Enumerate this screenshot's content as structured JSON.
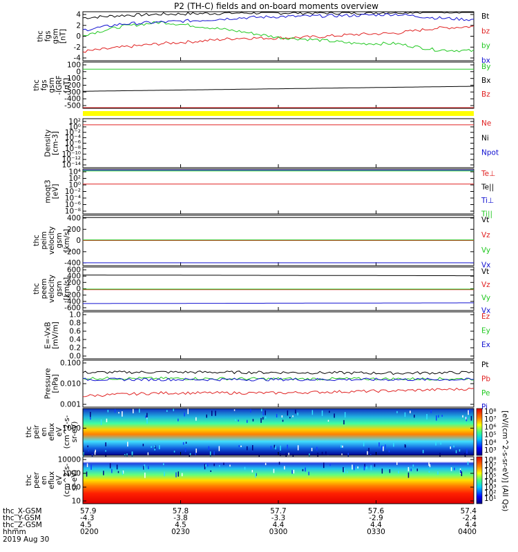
{
  "title": "P2 (TH-C) fields and on-board moments overview",
  "colors": {
    "black": "#000000",
    "red": "#e02020",
    "green": "#20c820",
    "blue": "#1010d0",
    "yellow": "#ffff00"
  },
  "chart_data": [
    {
      "type": "line",
      "ylabel": [
        "thc",
        "fgs",
        "gsm",
        "[nT]"
      ],
      "ylim": [
        -4,
        4
      ],
      "yticks": [
        "4",
        "2",
        "0",
        "-2",
        "-4"
      ],
      "series": [
        {
          "name": "Bt",
          "color": "#000000",
          "x": [
            0,
            0.1,
            0.2,
            0.3,
            0.4,
            0.5,
            0.6,
            0.7,
            0.8,
            0.9,
            1
          ],
          "y": [
            3.0,
            3.4,
            3.6,
            3.7,
            3.8,
            3.8,
            3.8,
            3.8,
            3.9,
            4.0,
            4.0
          ]
        },
        {
          "name": "bz",
          "color": "#e02020",
          "x": [
            0,
            0.1,
            0.2,
            0.3,
            0.4,
            0.5,
            0.6,
            0.7,
            0.8,
            0.9,
            1
          ],
          "y": [
            -2.5,
            -1.8,
            -1.2,
            -0.8,
            -0.3,
            -0.3,
            -0.1,
            0.3,
            0.5,
            1.3,
            1.6
          ]
        },
        {
          "name": "by",
          "color": "#20c820",
          "x": [
            0,
            0.1,
            0.2,
            0.3,
            0.4,
            0.5,
            0.6,
            0.7,
            0.8,
            0.9,
            1
          ],
          "y": [
            0.2,
            1.6,
            2.3,
            1.6,
            0.8,
            -0.2,
            -0.6,
            -1.2,
            -1.2,
            -2.2,
            -2.4
          ]
        },
        {
          "name": "bx",
          "color": "#1010d0",
          "x": [
            0,
            0.1,
            0.2,
            0.3,
            0.4,
            0.5,
            0.6,
            0.7,
            0.8,
            0.9,
            1
          ],
          "y": [
            1.0,
            2.0,
            2.3,
            2.6,
            3.0,
            3.2,
            3.3,
            3.4,
            3.6,
            3.0,
            2.7
          ]
        }
      ]
    },
    {
      "type": "line",
      "ylabel": [
        "thc",
        "fgs",
        "gsm",
        "-IGRF",
        "[nT]"
      ],
      "ylim": [
        -550,
        100
      ],
      "yticks": [
        "100",
        "0",
        "-100",
        "-200",
        "-300",
        "-400",
        "-500"
      ],
      "series": [
        {
          "name": "By",
          "color": "#20c820",
          "x": [
            0,
            1
          ],
          "y": [
            0,
            0
          ]
        },
        {
          "name": "Bx",
          "color": "#000000",
          "x": [
            0,
            1
          ],
          "y": [
            -310,
            -240
          ]
        },
        {
          "name": "Bz",
          "color": "#e02020",
          "x": [
            0,
            1
          ],
          "y": [
            -550,
            -550
          ]
        }
      ]
    },
    {
      "type": "line",
      "ylabel": [
        "Density",
        "[cm-3]"
      ],
      "yscale": "log",
      "yticks": [
        "10²",
        "10⁰",
        "10⁻²",
        "10⁻⁴",
        "10⁻⁶",
        "10⁻⁸",
        "10⁻¹⁰",
        "10⁻¹²",
        "10⁻¹⁴"
      ],
      "series": [
        {
          "name": "Ne",
          "color": "#e02020",
          "x": [
            0,
            1
          ],
          "y": [
            1.0,
            1.0
          ]
        },
        {
          "name": "Ni",
          "color": "#000000"
        },
        {
          "name": "Npot",
          "color": "#1010d0"
        }
      ]
    },
    {
      "type": "line",
      "ylabel": [
        "moqt3",
        "[eV]"
      ],
      "yscale": "log",
      "yticks": [
        "10⁴",
        "10²",
        "10⁰",
        "10⁻²",
        "10⁻⁴",
        "10⁻⁶",
        "10⁻⁸"
      ],
      "series": [
        {
          "name": "Te⊥",
          "color": "#e02020",
          "x": [
            0,
            1
          ],
          "y": [
            1,
            1
          ]
        },
        {
          "name": "Te||",
          "color": "#000000"
        },
        {
          "name": "Ti⊥",
          "color": "#1010d0",
          "x": [
            0,
            1
          ],
          "y": [
            5000,
            5000
          ]
        },
        {
          "name": "Ti||",
          "color": "#20c820",
          "x": [
            0,
            1
          ],
          "y": [
            3000,
            3000
          ]
        }
      ]
    },
    {
      "type": "line",
      "ylabel": [
        "thc",
        "peim",
        "velocity",
        "gsm",
        "[km/s]"
      ],
      "ylim": [
        -450,
        450
      ],
      "yticks": [
        "400",
        "200",
        "0",
        "-200",
        "-400"
      ],
      "series": [
        {
          "name": "Vt",
          "color": "#000000",
          "x": [
            0,
            1
          ],
          "y": [
            410,
            410
          ]
        },
        {
          "name": "Vz",
          "color": "#e02020",
          "x": [
            0,
            1
          ],
          "y": [
            0,
            0
          ]
        },
        {
          "name": "Vy",
          "color": "#20c820",
          "x": [
            0,
            1
          ],
          "y": [
            10,
            10
          ]
        },
        {
          "name": "Vx",
          "color": "#1010d0",
          "x": [
            0,
            1
          ],
          "y": [
            -400,
            -400
          ]
        }
      ]
    },
    {
      "type": "line",
      "ylabel": [
        "thc",
        "peem",
        "velocity",
        "gsm",
        "[km/s]"
      ],
      "ylim": [
        -600,
        650
      ],
      "yticks": [
        "600",
        "400",
        "200",
        "0",
        "-200",
        "-400",
        "-600"
      ],
      "series": [
        {
          "name": "Vt",
          "color": "#000000",
          "x": [
            0,
            0.5,
            1
          ],
          "y": [
            420,
            410,
            400
          ]
        },
        {
          "name": "Vz",
          "color": "#e02020",
          "x": [
            0,
            1
          ],
          "y": [
            0,
            0
          ]
        },
        {
          "name": "Vy",
          "color": "#20c820",
          "x": [
            0,
            1
          ],
          "y": [
            15,
            15
          ]
        },
        {
          "name": "Vx",
          "color": "#1010d0",
          "x": [
            0,
            0.5,
            1
          ],
          "y": [
            -400,
            -390,
            -380
          ]
        }
      ]
    },
    {
      "type": "line",
      "ylabel": [
        "E=-VxB",
        "[mV/m]"
      ],
      "ylim": [
        0,
        1
      ],
      "yticks": [
        "1.0",
        "0.8",
        "0.6",
        "0.4",
        "0.2",
        "0.0"
      ],
      "series": [
        {
          "name": "Ez",
          "color": "#e02020"
        },
        {
          "name": "Ey",
          "color": "#20c820"
        },
        {
          "name": "Ex",
          "color": "#1010d0"
        }
      ]
    },
    {
      "type": "line",
      "ylabel": [
        "Pressure",
        "[nPa]"
      ],
      "yscale": "log",
      "yticks": [
        "0.100",
        "0.010",
        "0.001"
      ],
      "series": [
        {
          "name": "Pt",
          "color": "#000000",
          "x": [
            0,
            0.2,
            0.5,
            0.8,
            1
          ],
          "y": [
            0.03,
            0.031,
            0.03,
            0.028,
            0.03
          ]
        },
        {
          "name": "Pb",
          "color": "#e02020",
          "x": [
            0,
            0.2,
            0.5,
            0.8,
            1
          ],
          "y": [
            0.003,
            0.004,
            0.004,
            0.005,
            0.006
          ]
        },
        {
          "name": "Pe",
          "color": "#20c820",
          "x": [
            0,
            0.5,
            1
          ],
          "y": [
            0.017,
            0.016,
            0.016
          ]
        },
        {
          "name": "Pi",
          "color": "#1010d0",
          "x": [
            0,
            0.5,
            1
          ],
          "y": [
            0.015,
            0.015,
            0.015
          ]
        }
      ]
    },
    {
      "type": "heatmap",
      "ylabel": [
        "thc",
        "peir",
        "en",
        "eflux",
        "eV",
        "(cm^2-s-",
        "sr-eV)"
      ],
      "yscale": "log",
      "yticks": [
        "1000"
      ],
      "colorbar_label": "[eV/(cm^2-s-sr-eV)] (All Qs)",
      "colorbar_ticks": [
        "10⁸",
        "10⁷",
        "10⁶",
        "10⁵",
        "10⁴",
        "10³"
      ]
    },
    {
      "type": "heatmap",
      "ylabel": [
        "thc",
        "peer",
        "en",
        "eflux",
        "eV",
        "(cm^2-s-",
        "sr-eV)"
      ],
      "yscale": "log",
      "yticks": [
        "10000",
        "1000",
        "100",
        "10"
      ],
      "colorbar_label": "[eV/(cm^2-s-sr-eV)] (All Qs)",
      "colorbar_ticks": [
        "10⁸",
        "10⁷",
        "10⁶",
        "10⁵",
        "10⁴",
        "10³",
        "10²",
        "10¹"
      ]
    }
  ],
  "xaxis": {
    "row_labels": [
      "thc_X-GSM",
      "thc_Y-GSM",
      "thc_Z-GSM",
      "hhmm",
      "2019 Aug 30"
    ],
    "ticks": [
      {
        "x": "57.9",
        "y": "-4.3",
        "z": "4.5",
        "t": "0200"
      },
      {
        "x": "57.8",
        "y": "-3.8",
        "z": "4.5",
        "t": "0230"
      },
      {
        "x": "57.7",
        "y": "-3.3",
        "z": "4.4",
        "t": "0300"
      },
      {
        "x": "57.6",
        "y": "-2.9",
        "z": "4.4",
        "t": "0330"
      },
      {
        "x": "57.4",
        "y": "-2.4",
        "z": "4.4",
        "t": "0400"
      }
    ]
  }
}
